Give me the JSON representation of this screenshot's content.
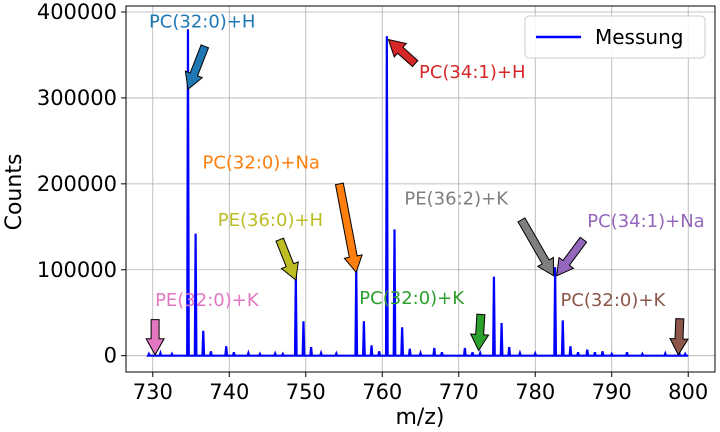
{
  "chart_data": {
    "type": "line",
    "xlabel": "m/z)",
    "ylabel": "Counts",
    "xlim": [
      726.5,
      803.5
    ],
    "ylim": [
      -19000,
      407000
    ],
    "xticks": [
      730,
      740,
      750,
      760,
      770,
      780,
      790,
      800
    ],
    "yticks": [
      0,
      100000,
      200000,
      300000,
      400000
    ],
    "grid": true,
    "legend": {
      "position": "top-right"
    },
    "series": [
      {
        "name": "Messung",
        "color": "#0000ff",
        "peaks": [
          {
            "x": 729.5,
            "y": 2000
          },
          {
            "x": 731.0,
            "y": 3000
          },
          {
            "x": 732.5,
            "y": 2000
          },
          {
            "x": 734.6,
            "y": 380000
          },
          {
            "x": 735.6,
            "y": 142000
          },
          {
            "x": 736.6,
            "y": 29000
          },
          {
            "x": 737.6,
            "y": 5000
          },
          {
            "x": 739.6,
            "y": 11000
          },
          {
            "x": 740.6,
            "y": 4000
          },
          {
            "x": 742.5,
            "y": 3000
          },
          {
            "x": 744.0,
            "y": 2000
          },
          {
            "x": 746.0,
            "y": 2500
          },
          {
            "x": 747.0,
            "y": 2000
          },
          {
            "x": 748.7,
            "y": 94000
          },
          {
            "x": 749.7,
            "y": 40000
          },
          {
            "x": 750.7,
            "y": 10000
          },
          {
            "x": 752.0,
            "y": 3000
          },
          {
            "x": 754.0,
            "y": 2500
          },
          {
            "x": 756.6,
            "y": 102000
          },
          {
            "x": 757.6,
            "y": 40000
          },
          {
            "x": 758.6,
            "y": 12000
          },
          {
            "x": 759.6,
            "y": 5000
          },
          {
            "x": 760.6,
            "y": 372000
          },
          {
            "x": 761.6,
            "y": 147000
          },
          {
            "x": 762.6,
            "y": 33000
          },
          {
            "x": 763.6,
            "y": 8000
          },
          {
            "x": 765.0,
            "y": 3000
          },
          {
            "x": 766.8,
            "y": 9000
          },
          {
            "x": 767.8,
            "y": 4000
          },
          {
            "x": 770.8,
            "y": 9000
          },
          {
            "x": 771.8,
            "y": 4000
          },
          {
            "x": 772.8,
            "y": 3000
          },
          {
            "x": 774.6,
            "y": 92000
          },
          {
            "x": 775.6,
            "y": 38000
          },
          {
            "x": 776.6,
            "y": 10000
          },
          {
            "x": 778.0,
            "y": 3000
          },
          {
            "x": 780.0,
            "y": 2500
          },
          {
            "x": 782.6,
            "y": 103000
          },
          {
            "x": 783.6,
            "y": 41000
          },
          {
            "x": 784.6,
            "y": 11000
          },
          {
            "x": 785.6,
            "y": 4000
          },
          {
            "x": 786.8,
            "y": 7000
          },
          {
            "x": 787.8,
            "y": 4000
          },
          {
            "x": 788.8,
            "y": 5000
          },
          {
            "x": 790.0,
            "y": 2000
          },
          {
            "x": 792.0,
            "y": 4000
          },
          {
            "x": 794.0,
            "y": 2000
          },
          {
            "x": 797.0,
            "y": 2500
          },
          {
            "x": 798.8,
            "y": 5000
          },
          {
            "x": 799.6,
            "y": 2000
          }
        ]
      }
    ],
    "annotations": [
      {
        "text": "PC(32:0)+H",
        "color": "#1f77b4",
        "tip": [
          734.6,
          310000
        ],
        "tail": [
          736.8,
          360000
        ],
        "label": [
          729.5,
          382000
        ]
      },
      {
        "text": "PC(34:1)+H",
        "color": "#d62728",
        "tip": [
          760.8,
          368000
        ],
        "tail": [
          764.3,
          340000
        ],
        "label": [
          764.8,
          323000
        ]
      },
      {
        "text": "PC(32:0)+Na",
        "color": "#ff7f0e",
        "tip": [
          756.6,
          97000
        ],
        "tail": [
          754.4,
          200000
        ],
        "label": [
          736.5,
          218000
        ]
      },
      {
        "text": "PE(36:0)+H",
        "color": "#bcbd22",
        "tip": [
          748.7,
          88000
        ],
        "tail": [
          746.6,
          135000
        ],
        "label": [
          738.5,
          151000
        ]
      },
      {
        "text": "PE(36:2)+K",
        "color": "#7f7f7f",
        "tip": [
          782.4,
          93000
        ],
        "tail": [
          778.2,
          158000
        ],
        "label": [
          762.9,
          176000
        ]
      },
      {
        "text": "PC(34:1)+Na",
        "color": "#9467bd",
        "tip": [
          782.8,
          93000
        ],
        "tail": [
          786.3,
          135000
        ],
        "label": [
          786.8,
          150000
        ]
      },
      {
        "text": "PE(32:0)+K",
        "color": "#e377c2",
        "tip": [
          730.3,
          1000
        ],
        "tail": [
          730.3,
          42000
        ],
        "label": [
          730.3,
          58000
        ]
      },
      {
        "text": "PC(32:0)+K",
        "color": "#2ca02c",
        "tip": [
          772.6,
          6000
        ],
        "tail": [
          772.9,
          48000
        ],
        "label": [
          757.0,
          60000
        ]
      },
      {
        "text": "PC(32:0)+K",
        "color": "#8c564b",
        "tip": [
          798.7,
          1000
        ],
        "tail": [
          798.9,
          43000
        ],
        "label": [
          783.3,
          58000
        ]
      }
    ]
  }
}
